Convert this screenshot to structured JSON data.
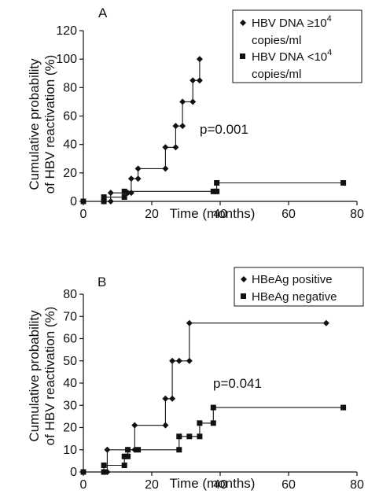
{
  "chart_data": [
    {
      "type": "line",
      "panel_label": "A",
      "title": "",
      "xlabel": "Time (months)",
      "ylabel": [
        "Cumulative probability",
        "of HBV reactivation (%)"
      ],
      "xlim": [
        0,
        80
      ],
      "ylim": [
        0,
        120
      ],
      "xticks": [
        "0",
        "20",
        "40",
        "60",
        "80"
      ],
      "yticks": [
        "0",
        "20",
        "40",
        "60",
        "80",
        "100",
        "120"
      ],
      "annotation": "p=0.001",
      "legend_position": "top-right",
      "series": [
        {
          "name_parts": [
            "HBV DNA",
            "≥",
            "10",
            "4",
            "copies/ml"
          ],
          "marker": "diamond",
          "points": [
            [
              0,
              0
            ],
            [
              6,
              0
            ],
            [
              8,
              0
            ],
            [
              8,
              6
            ],
            [
              13,
              6
            ],
            [
              14,
              6
            ],
            [
              14,
              16
            ],
            [
              16,
              16
            ],
            [
              16,
              23
            ],
            [
              24,
              23
            ],
            [
              24,
              38
            ],
            [
              27,
              38
            ],
            [
              27,
              53
            ],
            [
              29,
              53
            ],
            [
              29,
              70
            ],
            [
              32,
              70
            ],
            [
              32,
              85
            ],
            [
              34,
              85
            ],
            [
              34,
              100
            ]
          ]
        },
        {
          "name_parts": [
            "HBV DNA",
            "<",
            "10",
            "4",
            "copies/ml"
          ],
          "marker": "square",
          "points": [
            [
              0,
              0
            ],
            [
              6,
              0
            ],
            [
              6,
              3
            ],
            [
              12,
              3
            ],
            [
              12,
              7
            ],
            [
              38,
              7
            ],
            [
              39,
              7
            ],
            [
              39,
              13
            ],
            [
              76,
              13
            ]
          ]
        }
      ]
    },
    {
      "type": "line",
      "panel_label": "B",
      "title": "",
      "xlabel": "Time (months)",
      "ylabel": [
        "Cumulative probability",
        "of HBV reactivation (%)"
      ],
      "xlim": [
        0,
        80
      ],
      "ylim": [
        0,
        80
      ],
      "xticks": [
        "0",
        "20",
        "40",
        "60",
        "80"
      ],
      "yticks": [
        "0",
        "10",
        "20",
        "30",
        "40",
        "50",
        "60",
        "70",
        "80"
      ],
      "annotation": "p=0.041",
      "legend_position": "top-right",
      "series": [
        {
          "name": "HBeAg positive",
          "marker": "diamond",
          "points": [
            [
              0,
              0
            ],
            [
              6,
              0
            ],
            [
              7,
              0
            ],
            [
              7,
              10
            ],
            [
              13,
              10
            ],
            [
              15,
              10
            ],
            [
              15,
              21
            ],
            [
              24,
              21
            ],
            [
              24,
              33
            ],
            [
              26,
              33
            ],
            [
              26,
              50
            ],
            [
              28,
              50
            ],
            [
              31,
              50
            ],
            [
              31,
              67
            ],
            [
              71,
              67
            ]
          ]
        },
        {
          "name": "HBeAg negative",
          "marker": "square",
          "points": [
            [
              0,
              0
            ],
            [
              6,
              0
            ],
            [
              6,
              3
            ],
            [
              12,
              3
            ],
            [
              12,
              7
            ],
            [
              13,
              7
            ],
            [
              13,
              10
            ],
            [
              16,
              10
            ],
            [
              28,
              10
            ],
            [
              28,
              16
            ],
            [
              31,
              16
            ],
            [
              34,
              16
            ],
            [
              34,
              22
            ],
            [
              38,
              22
            ],
            [
              38,
              29
            ],
            [
              76,
              29
            ]
          ]
        }
      ]
    }
  ]
}
